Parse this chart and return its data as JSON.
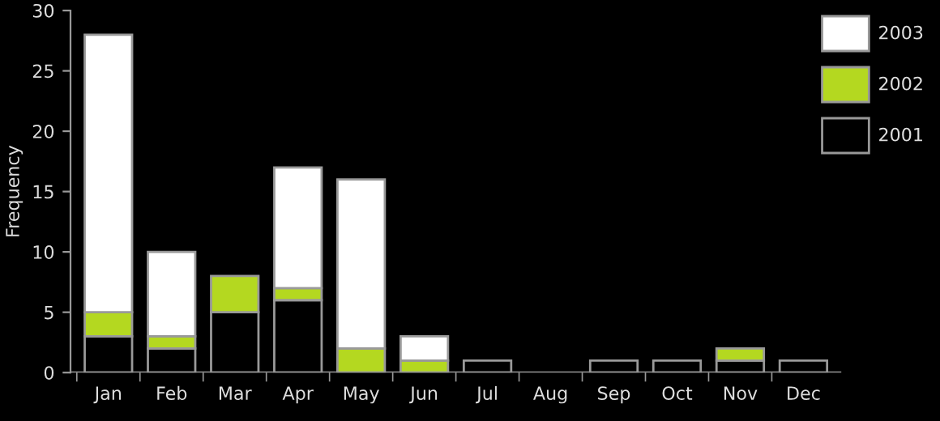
{
  "chart_data": {
    "type": "bar",
    "ylabel": "Frequency",
    "stacked": true,
    "categories": [
      "Jan",
      "Feb",
      "Mar",
      "Apr",
      "May",
      "Jun",
      "Jul",
      "Aug",
      "Sep",
      "Oct",
      "Nov",
      "Dec"
    ],
    "series": [
      {
        "name": "2001",
        "color": "#000000",
        "values": [
          3,
          2,
          5,
          6,
          0,
          0,
          1,
          0,
          1,
          1,
          1,
          1
        ]
      },
      {
        "name": "2002",
        "color": "#b4d820",
        "values": [
          2,
          1,
          3,
          1,
          2,
          1,
          0,
          0,
          0,
          0,
          1,
          0
        ]
      },
      {
        "name": "2003",
        "color": "#ffffff",
        "values": [
          23,
          7,
          0,
          10,
          14,
          2,
          0,
          0,
          0,
          0,
          0,
          0
        ]
      }
    ],
    "ylim": [
      0,
      30
    ],
    "yticks": [
      0,
      5,
      10,
      15,
      20,
      25,
      30
    ],
    "grid": false,
    "legend": "top right"
  }
}
